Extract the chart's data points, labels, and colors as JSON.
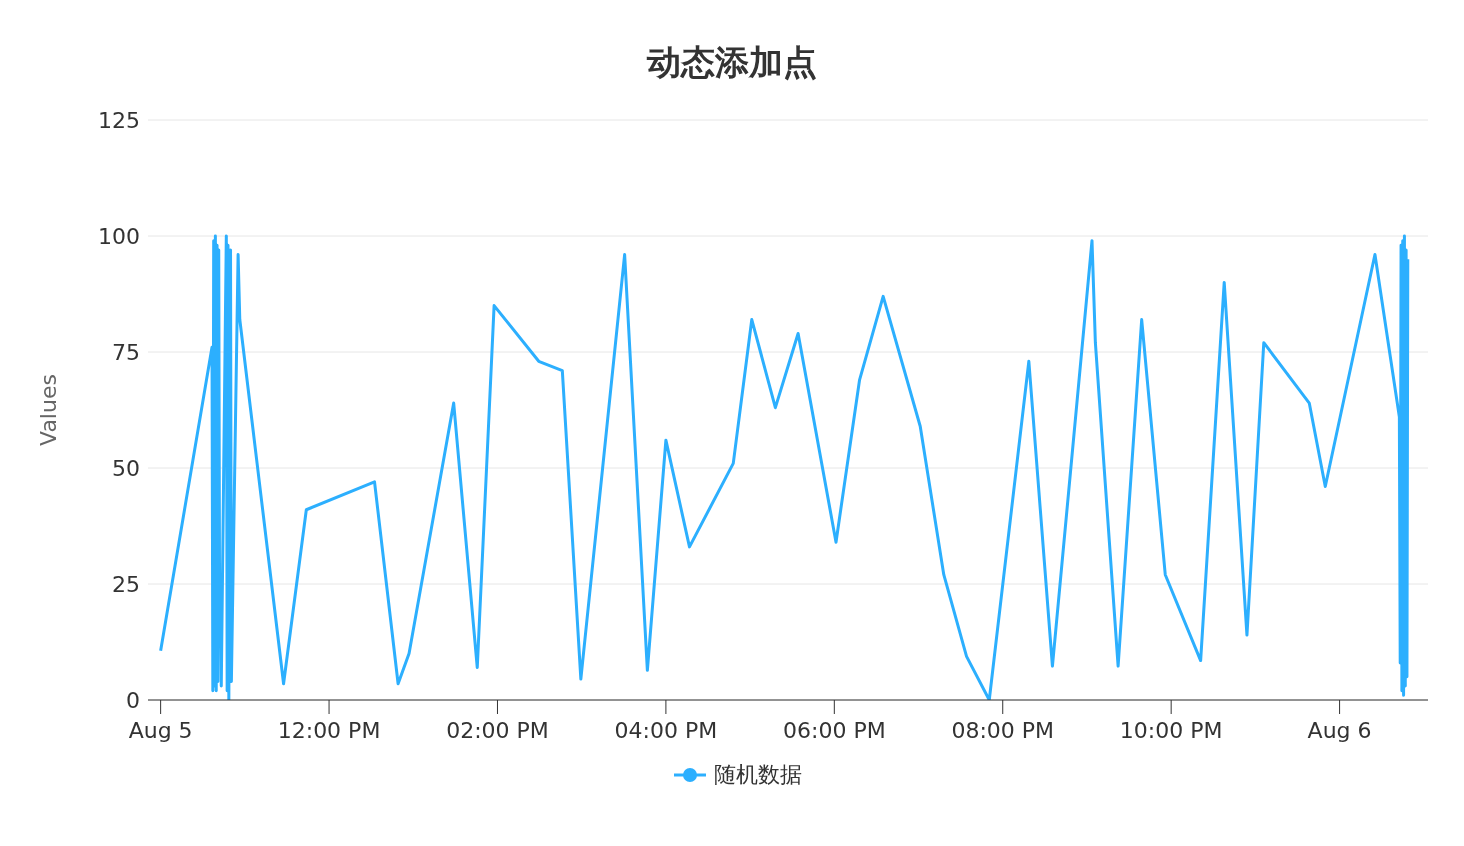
{
  "chart_data": {
    "type": "line",
    "title": "动态添加点",
    "ylabel": "Values",
    "x": [
      10.0,
      10.61,
      10.62,
      10.63,
      10.64,
      10.65,
      10.66,
      10.67,
      10.68,
      10.69,
      10.7,
      10.71,
      10.72,
      10.78,
      10.79,
      10.8,
      10.81,
      10.83,
      10.84,
      10.92,
      10.94,
      11.46,
      11.73,
      12.54,
      12.82,
      12.95,
      13.48,
      13.76,
      13.96,
      14.49,
      14.77,
      14.99,
      15.51,
      15.78,
      16.0,
      16.28,
      16.8,
      17.02,
      17.3,
      17.57,
      18.02,
      18.3,
      18.58,
      19.02,
      19.3,
      19.57,
      19.84,
      20.31,
      20.59,
      21.06,
      21.1,
      21.37,
      21.65,
      21.93,
      22.35,
      22.63,
      22.9,
      23.1,
      23.64,
      23.83,
      24.42,
      24.71,
      24.72,
      24.73,
      24.74,
      24.75,
      24.76,
      24.77,
      24.78,
      24.79,
      24.8,
      24.81
    ],
    "series": [
      {
        "name": "随机数据",
        "color": "#2caffe",
        "values": [
          10.6,
          76,
          2,
          99,
          3,
          100,
          2,
          98,
          4,
          97,
          20,
          27,
          3,
          100,
          2,
          98,
          0,
          97,
          4,
          96,
          82,
          3.5,
          41,
          47,
          3.5,
          10,
          64,
          7,
          85,
          73,
          71,
          4.5,
          96,
          6.4,
          56,
          33,
          51,
          82,
          63,
          79,
          34,
          69,
          87,
          59,
          27,
          9.4,
          0,
          73,
          7.3,
          99,
          77,
          7.3,
          82,
          27,
          8.5,
          90,
          14,
          77,
          64,
          46,
          96,
          61,
          8,
          98,
          2,
          99,
          1,
          100,
          3,
          97,
          5,
          95
        ]
      }
    ],
    "xlim": [
      9.85,
      25.05
    ],
    "xticks": [
      {
        "value": 10,
        "label": "Aug 5"
      },
      {
        "value": 12,
        "label": "12:00 PM"
      },
      {
        "value": 14,
        "label": "02:00 PM"
      },
      {
        "value": 16,
        "label": "04:00 PM"
      },
      {
        "value": 18,
        "label": "06:00 PM"
      },
      {
        "value": 20,
        "label": "08:00 PM"
      },
      {
        "value": 22,
        "label": "10:00 PM"
      },
      {
        "value": 24,
        "label": "Aug 6"
      }
    ],
    "ylim": [
      0,
      125
    ],
    "yticks": [
      0,
      25,
      50,
      75,
      100,
      125
    ],
    "grid": "y",
    "legend": "bottom",
    "marker": "none",
    "line_style": "solid"
  }
}
